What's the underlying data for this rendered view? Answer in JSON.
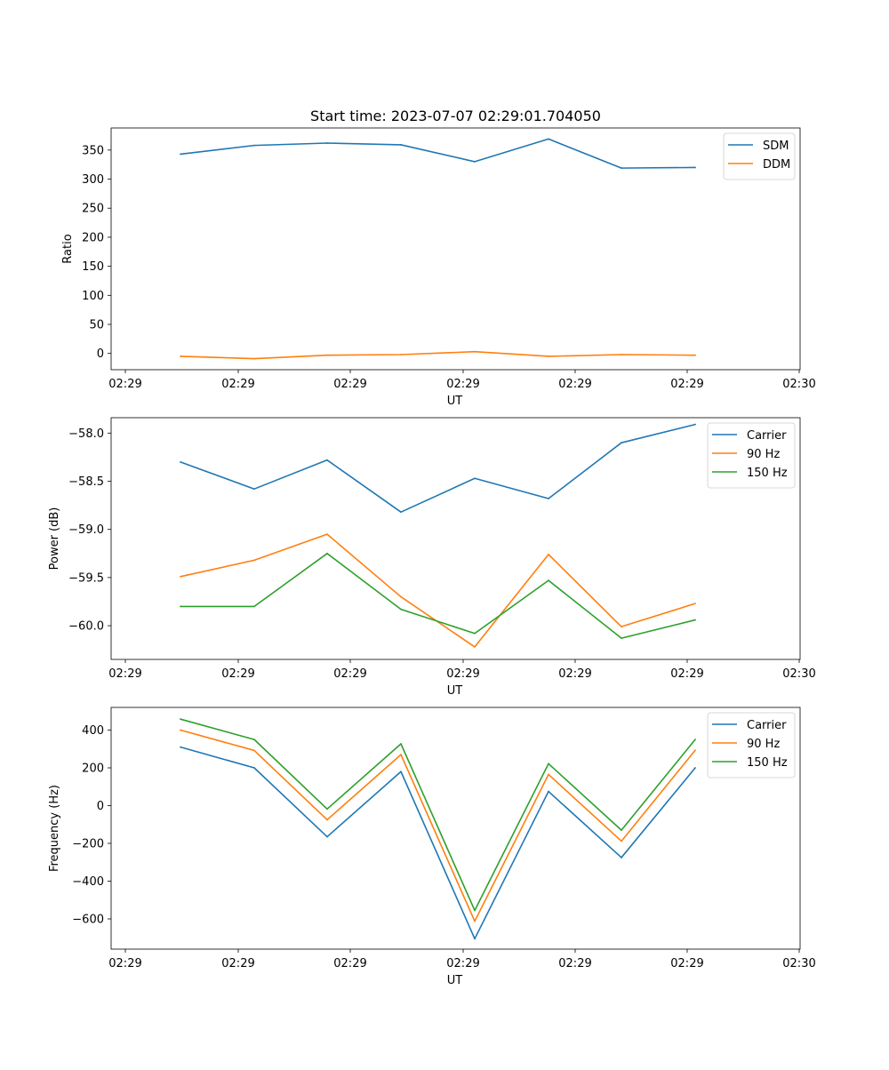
{
  "chart_data": [
    {
      "type": "line",
      "title": "Start time: 2023-07-07 02:29:01.704050",
      "xlabel": "UT",
      "ylabel": "Ratio",
      "x_tick_labels": [
        "02:29",
        "02:29",
        "02:29",
        "02:29",
        "02:29",
        "02:29",
        "02:30"
      ],
      "ylim": [
        -28,
        388
      ],
      "yticks": [
        0,
        50,
        100,
        150,
        200,
        250,
        300,
        350
      ],
      "legend": "top-right",
      "series": [
        {
          "name": "SDM",
          "color": "#1f77b4",
          "values": [
            343,
            358,
            362,
            359,
            330,
            369,
            319,
            320
          ]
        },
        {
          "name": "DDM",
          "color": "#ff7f0e",
          "values": [
            -5,
            -9,
            -3,
            -2,
            3,
            -5,
            -2,
            -3
          ]
        }
      ]
    },
    {
      "type": "line",
      "title": "",
      "xlabel": "UT",
      "ylabel": "Power (dB)",
      "x_tick_labels": [
        "02:29",
        "02:29",
        "02:29",
        "02:29",
        "02:29",
        "02:29",
        "02:30"
      ],
      "ylim": [
        -60.35,
        -57.84
      ],
      "yticks": [
        -60.0,
        -59.5,
        -59.0,
        -58.5,
        -58.0
      ],
      "ytick_labels": [
        "−60.0",
        "−59.5",
        "−59.0",
        "−58.5",
        "−58.0"
      ],
      "legend": "top-right",
      "series": [
        {
          "name": "Carrier",
          "color": "#1f77b4",
          "values": [
            -58.3,
            -58.58,
            -58.28,
            -58.82,
            -58.47,
            -58.68,
            -58.1,
            -57.91
          ]
        },
        {
          "name": "90 Hz",
          "color": "#ff7f0e",
          "values": [
            -59.49,
            -59.32,
            -59.05,
            -59.7,
            -60.22,
            -59.26,
            -60.01,
            -59.77
          ]
        },
        {
          "name": "150 Hz",
          "color": "#2ca02c",
          "values": [
            -59.8,
            -59.8,
            -59.25,
            -59.83,
            -60.08,
            -59.53,
            -60.13,
            -59.94
          ]
        }
      ]
    },
    {
      "type": "line",
      "title": "",
      "xlabel": "UT",
      "ylabel": "Frequency (Hz)",
      "x_tick_labels": [
        "02:29",
        "02:29",
        "02:29",
        "02:29",
        "02:29",
        "02:29",
        "02:30"
      ],
      "ylim": [
        -760,
        520
      ],
      "yticks": [
        -600,
        -400,
        -200,
        0,
        200,
        400
      ],
      "ytick_labels": [
        "−600",
        "−400",
        "−200",
        "0",
        "200",
        "400"
      ],
      "legend": "top-right",
      "series": [
        {
          "name": "Carrier",
          "color": "#1f77b4",
          "values": [
            310,
            200,
            -165,
            180,
            -705,
            75,
            -275,
            200
          ]
        },
        {
          "name": "90 Hz",
          "color": "#ff7f0e",
          "values": [
            400,
            292,
            -75,
            270,
            -612,
            165,
            -188,
            293
          ]
        },
        {
          "name": "150 Hz",
          "color": "#2ca02c",
          "values": [
            458,
            350,
            -18,
            327,
            -555,
            222,
            -130,
            350
          ]
        }
      ]
    }
  ]
}
